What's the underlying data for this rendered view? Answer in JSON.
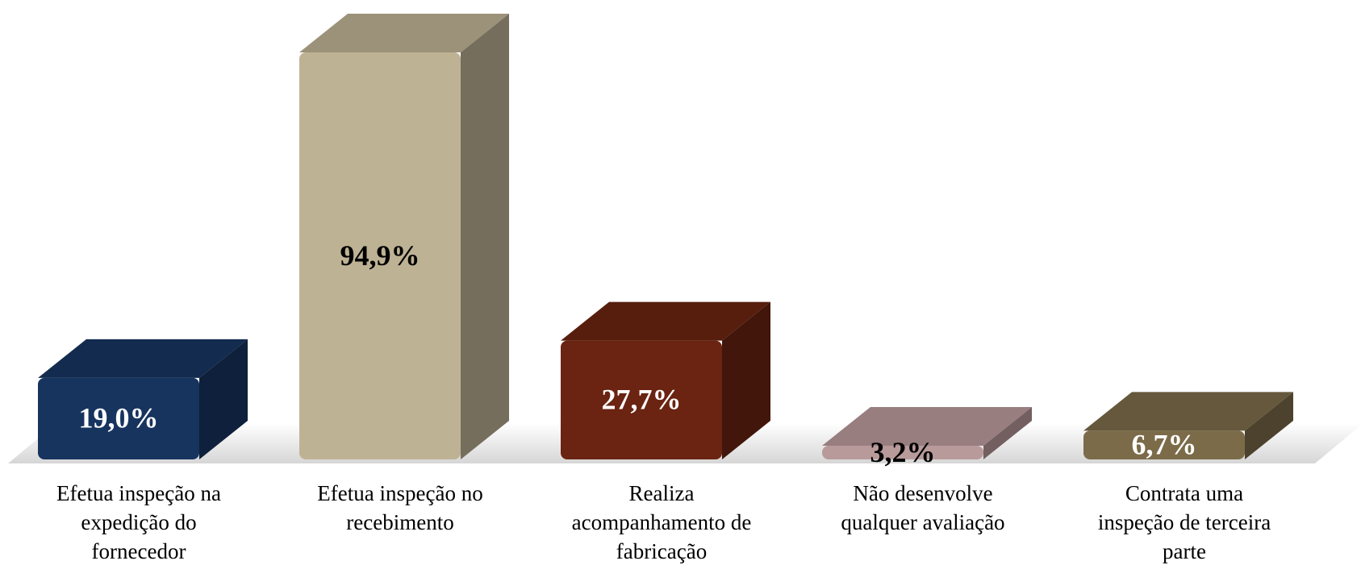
{
  "chart_data": {
    "type": "bar3d",
    "categories": [
      [
        "Efetua inspeção na",
        "expedição do",
        "fornecedor"
      ],
      [
        "Efetua inspeção no",
        "recebimento"
      ],
      [
        "Realiza",
        "acompanhamento de",
        "fabricação"
      ],
      [
        "Não desenvolve",
        "qualquer avaliação"
      ],
      [
        "Contrata uma",
        "inspeção de terceira",
        "parte"
      ]
    ],
    "values": [
      19.0,
      94.9,
      27.7,
      3.2,
      6.7
    ],
    "value_labels": [
      "19,0%",
      "94,9%",
      "27,7%",
      "3,2%",
      "6,7%"
    ],
    "colors": [
      "#17345f",
      "#beb294",
      "#6a2411",
      "#b99a9b",
      "#7b6b49"
    ],
    "label_colors": [
      "#ffffff",
      "#000000",
      "#ffffff",
      "#000000",
      "#ffffff"
    ]
  }
}
